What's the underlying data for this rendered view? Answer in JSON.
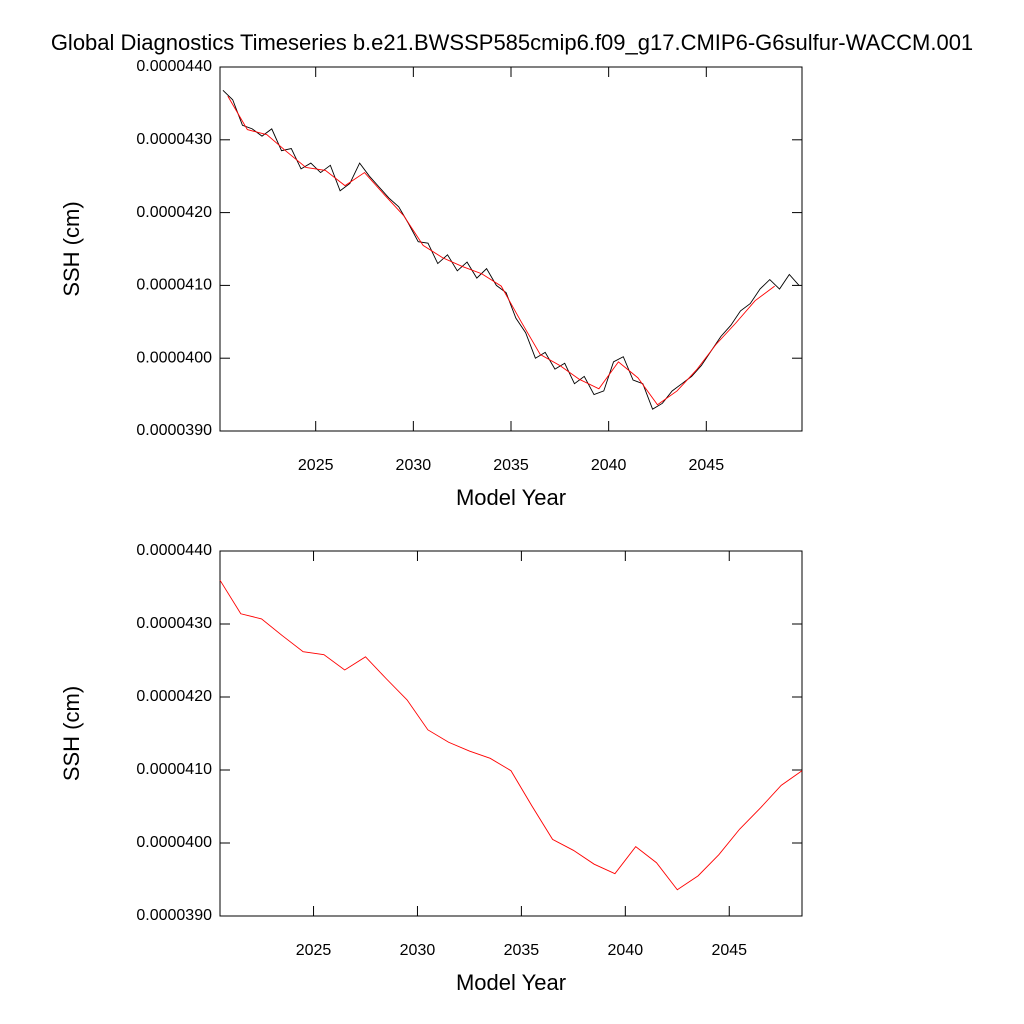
{
  "chart_data": [
    {
      "type": "line",
      "title": "Global Diagnostics Timeseries b.e21.BWSSP585cmip6.f09_g17.CMIP6-G6sulfur-WACCM.001",
      "x_label": "Model Year",
      "y_label": "SSH (cm)",
      "xlim": [
        2020.1,
        2049.9
      ],
      "xticks": [
        2025,
        2030,
        2035,
        2040,
        2045
      ],
      "ylim": [
        3.9e-05,
        4.4e-05
      ],
      "yticks": [
        {
          "value": 3.9e-05,
          "label": "0.0000390"
        },
        {
          "value": 4e-05,
          "label": "0.0000400"
        },
        {
          "value": 4.1e-05,
          "label": "0.0000410"
        },
        {
          "value": 4.2e-05,
          "label": "0.0000420"
        },
        {
          "value": 4.3e-05,
          "label": "0.0000430"
        },
        {
          "value": 4.4e-05,
          "label": "0.0000440"
        }
      ],
      "series": [
        {
          "color": "#000000",
          "x": [
            2020.25,
            2020.75,
            2021.25,
            2021.75,
            2022.25,
            2022.75,
            2023.25,
            2023.75,
            2024.25,
            2024.75,
            2025.25,
            2025.75,
            2026.25,
            2026.75,
            2027.25,
            2027.75,
            2028.25,
            2028.75,
            2029.25,
            2029.75,
            2030.25,
            2030.75,
            2031.25,
            2031.75,
            2032.25,
            2032.75,
            2033.25,
            2033.75,
            2034.25,
            2034.75,
            2035.25,
            2035.75,
            2036.25,
            2036.75,
            2037.25,
            2037.75,
            2038.25,
            2038.75,
            2039.25,
            2039.75,
            2040.25,
            2040.75,
            2041.25,
            2041.75,
            2042.25,
            2042.75,
            2043.25,
            2043.75,
            2044.25,
            2044.75,
            2045.25,
            2045.75,
            2046.25,
            2046.75,
            2047.25,
            2047.75,
            2048.25,
            2048.75,
            2049.25,
            2049.75
          ],
          "values": [
            4.368e-05,
            4.355e-05,
            4.32e-05,
            4.315e-05,
            4.305e-05,
            4.315e-05,
            4.285e-05,
            4.288e-05,
            4.26e-05,
            4.268e-05,
            4.255e-05,
            4.265e-05,
            4.23e-05,
            4.24e-05,
            4.268e-05,
            4.25e-05,
            4.235e-05,
            4.22e-05,
            4.208e-05,
            4.185e-05,
            4.16e-05,
            4.158e-05,
            4.13e-05,
            4.142e-05,
            4.12e-05,
            4.132e-05,
            4.11e-05,
            4.123e-05,
            4.1e-05,
            4.09e-05,
            4.055e-05,
            4.035e-05,
            4e-05,
            4.008e-05,
            3.985e-05,
            3.993e-05,
            3.965e-05,
            3.975e-05,
            3.95e-05,
            3.955e-05,
            3.995e-05,
            4.002e-05,
            3.97e-05,
            3.965e-05,
            3.93e-05,
            3.938e-05,
            3.955e-05,
            3.965e-05,
            3.975e-05,
            3.99e-05,
            4.01e-05,
            4.03e-05,
            4.045e-05,
            4.065e-05,
            4.075e-05,
            4.095e-05,
            4.108e-05,
            4.095e-05,
            4.115e-05,
            4.1e-05
          ]
        },
        {
          "color": "#ff0000",
          "x": [
            2020.5,
            2021.5,
            2022.5,
            2023.5,
            2024.5,
            2025.5,
            2026.5,
            2027.5,
            2028.5,
            2029.5,
            2030.5,
            2031.5,
            2032.5,
            2033.5,
            2034.5,
            2035.5,
            2036.5,
            2037.5,
            2038.5,
            2039.5,
            2040.5,
            2041.5,
            2042.5,
            2043.5,
            2044.5,
            2045.5,
            2046.5,
            2047.5,
            2048.5
          ],
          "values": [
            4.36e-05,
            4.314e-05,
            4.307e-05,
            4.284e-05,
            4.262e-05,
            4.258e-05,
            4.237e-05,
            4.255e-05,
            4.225e-05,
            4.196e-05,
            4.155e-05,
            4.138e-05,
            4.126e-05,
            4.116e-05,
            4.099e-05,
            4.051e-05,
            4.005e-05,
            3.99e-05,
            3.971e-05,
            3.958e-05,
            3.995e-05,
            3.973e-05,
            3.936e-05,
            3.955e-05,
            3.984e-05,
            4.019e-05,
            4.048e-05,
            4.079e-05,
            4.099e-05
          ]
        }
      ]
    },
    {
      "type": "line",
      "x_label": "Model Year",
      "y_label": "SSH (cm)",
      "xlim": [
        2020.5,
        2048.5
      ],
      "xticks": [
        2025,
        2030,
        2035,
        2040,
        2045
      ],
      "ylim": [
        3.9e-05,
        4.4e-05
      ],
      "yticks": [
        {
          "value": 3.9e-05,
          "label": "0.0000390"
        },
        {
          "value": 4e-05,
          "label": "0.0000400"
        },
        {
          "value": 4.1e-05,
          "label": "0.0000410"
        },
        {
          "value": 4.2e-05,
          "label": "0.0000420"
        },
        {
          "value": 4.3e-05,
          "label": "0.0000430"
        },
        {
          "value": 4.4e-05,
          "label": "0.0000440"
        }
      ],
      "series": [
        {
          "color": "#ff0000",
          "x": [
            2020.5,
            2021.5,
            2022.5,
            2023.5,
            2024.5,
            2025.5,
            2026.5,
            2027.5,
            2028.5,
            2029.5,
            2030.5,
            2031.5,
            2032.5,
            2033.5,
            2034.5,
            2035.5,
            2036.5,
            2037.5,
            2038.5,
            2039.5,
            2040.5,
            2041.5,
            2042.5,
            2043.5,
            2044.5,
            2045.5,
            2046.5,
            2047.5,
            2048.5
          ],
          "values": [
            4.36e-05,
            4.314e-05,
            4.307e-05,
            4.284e-05,
            4.262e-05,
            4.258e-05,
            4.237e-05,
            4.255e-05,
            4.225e-05,
            4.196e-05,
            4.155e-05,
            4.138e-05,
            4.126e-05,
            4.116e-05,
            4.099e-05,
            4.051e-05,
            4.005e-05,
            3.99e-05,
            3.971e-05,
            3.958e-05,
            3.995e-05,
            3.973e-05,
            3.936e-05,
            3.955e-05,
            3.984e-05,
            4.019e-05,
            4.048e-05,
            4.079e-05,
            4.099e-05
          ]
        }
      ]
    }
  ]
}
